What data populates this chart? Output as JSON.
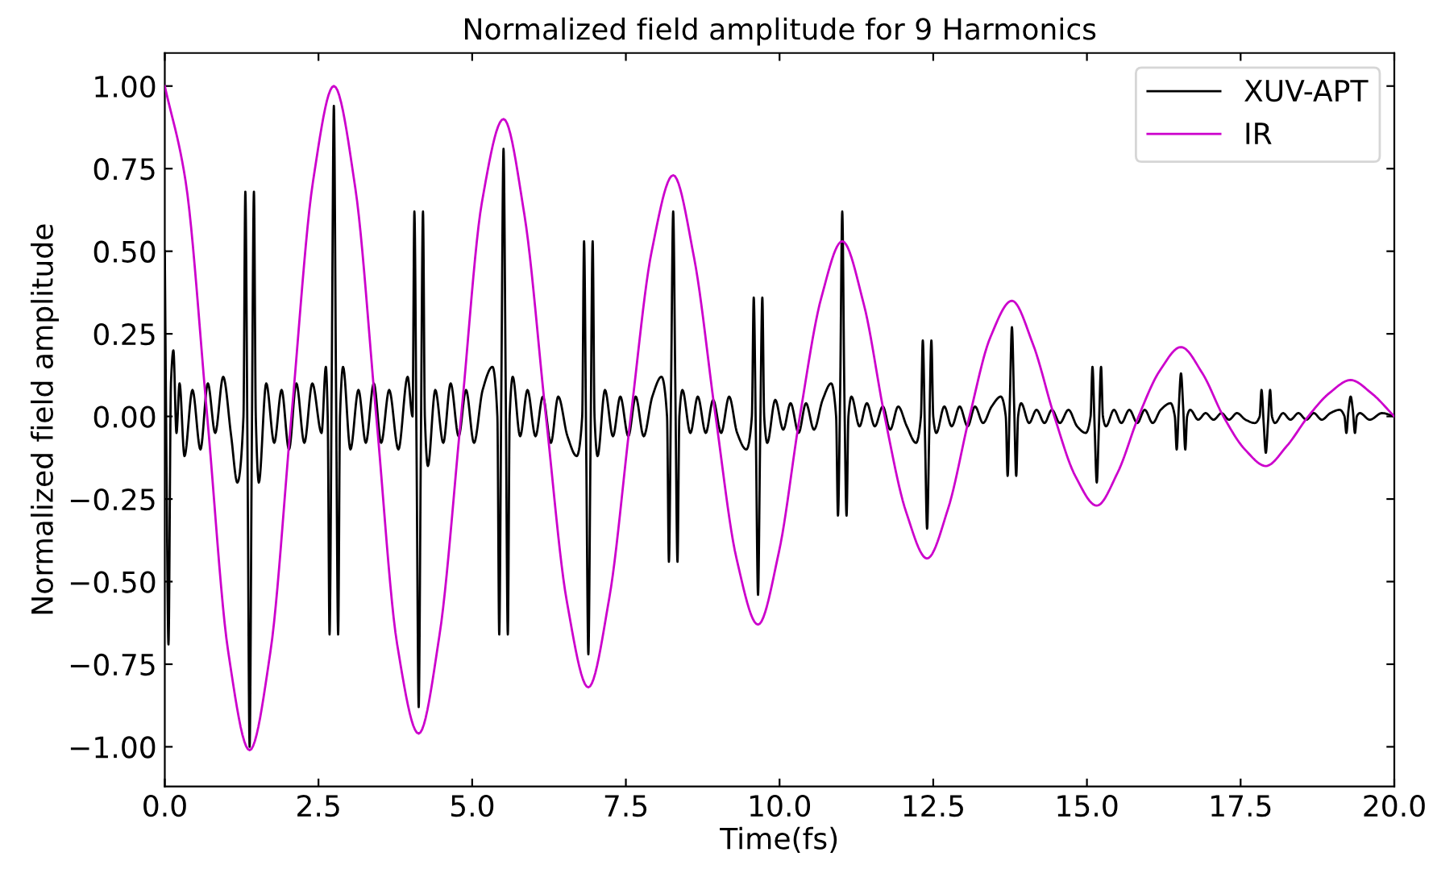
{
  "chart_data": {
    "type": "line",
    "title": "Normalized field amplitude for 9 Harmonics",
    "xlabel": "Time(fs)",
    "ylabel": "Normalized field amplitude",
    "xlim": [
      0,
      20
    ],
    "ylim": [
      -1.12,
      1.1
    ],
    "xticks": [
      {
        "value": 0,
        "label": "0.0"
      },
      {
        "value": 2.5,
        "label": "2.5"
      },
      {
        "value": 5,
        "label": "5.0"
      },
      {
        "value": 7.5,
        "label": "7.5"
      },
      {
        "value": 10,
        "label": "10.0"
      },
      {
        "value": 12.5,
        "label": "12.5"
      },
      {
        "value": 15,
        "label": "15.0"
      },
      {
        "value": 17.5,
        "label": "17.5"
      },
      {
        "value": 20,
        "label": "20.0"
      }
    ],
    "yticks": [
      {
        "value": -1,
        "label": "−1.00"
      },
      {
        "value": -0.75,
        "label": "−0.75"
      },
      {
        "value": -0.5,
        "label": "−0.50"
      },
      {
        "value": -0.25,
        "label": "−0.25"
      },
      {
        "value": 0,
        "label": "0.00"
      },
      {
        "value": 0.25,
        "label": "0.25"
      },
      {
        "value": 0.5,
        "label": "0.50"
      },
      {
        "value": 0.75,
        "label": "0.75"
      },
      {
        "value": 1,
        "label": "1.00"
      }
    ],
    "grid": false,
    "legend": "top right",
    "marker": "none",
    "line_style": "solid",
    "series": [
      {
        "name": "XUV-APT",
        "color": "#000000",
        "x": [
          0,
          0.03,
          0.06,
          0.1,
          0.14,
          0.19,
          0.24,
          0.32,
          0.45,
          0.58,
          0.7,
          0.82,
          0.95,
          1.08,
          1.18,
          1.28,
          1.31,
          1.345,
          1.38,
          1.415,
          1.45,
          1.48,
          1.53,
          1.65,
          1.78,
          1.9,
          2.02,
          2.14,
          2.27,
          2.4,
          2.55,
          2.62,
          2.65,
          2.68,
          2.715,
          2.75,
          2.785,
          2.82,
          2.85,
          2.9,
          3.02,
          3.15,
          3.27,
          3.4,
          3.52,
          3.65,
          3.8,
          3.95,
          4.03,
          4.06,
          4.095,
          4.13,
          4.165,
          4.2,
          4.23,
          4.28,
          4.4,
          4.53,
          4.65,
          4.78,
          4.9,
          5.03,
          5.17,
          5.33,
          5.41,
          5.44,
          5.475,
          5.51,
          5.545,
          5.58,
          5.61,
          5.66,
          5.78,
          5.9,
          6.03,
          6.15,
          6.28,
          6.4,
          6.55,
          6.7,
          6.79,
          6.82,
          6.855,
          6.89,
          6.925,
          6.96,
          6.99,
          7.04,
          7.16,
          7.29,
          7.41,
          7.54,
          7.66,
          7.79,
          7.93,
          8.08,
          8.17,
          8.2,
          8.235,
          8.27,
          8.305,
          8.34,
          8.37,
          8.42,
          8.55,
          8.67,
          8.8,
          8.92,
          9.05,
          9.18,
          9.31,
          9.46,
          9.55,
          9.58,
          9.615,
          9.65,
          9.685,
          9.72,
          9.75,
          9.8,
          9.93,
          10.06,
          10.18,
          10.31,
          10.43,
          10.56,
          10.7,
          10.84,
          10.92,
          10.95,
          10.985,
          11.02,
          11.055,
          11.09,
          11.12,
          11.17,
          11.3,
          11.42,
          11.55,
          11.68,
          11.8,
          11.93,
          12.07,
          12.22,
          12.3,
          12.33,
          12.365,
          12.4,
          12.435,
          12.47,
          12.5,
          12.55,
          12.68,
          12.8,
          12.93,
          13.06,
          13.18,
          13.31,
          13.45,
          13.6,
          13.68,
          13.71,
          13.745,
          13.78,
          13.815,
          13.85,
          13.88,
          13.93,
          14.06,
          14.18,
          14.31,
          14.43,
          14.56,
          14.7,
          14.84,
          14.98,
          15.06,
          15.09,
          15.125,
          15.16,
          15.195,
          15.23,
          15.26,
          15.31,
          15.44,
          15.56,
          15.69,
          15.82,
          15.94,
          16.07,
          16.2,
          16.36,
          16.43,
          16.46,
          16.495,
          16.53,
          16.565,
          16.6,
          16.63,
          16.68,
          16.81,
          16.93,
          17.06,
          17.19,
          17.31,
          17.44,
          17.58,
          17.73,
          17.81,
          17.84,
          17.875,
          17.91,
          17.945,
          17.98,
          18.01,
          18.06,
          18.19,
          18.31,
          18.44,
          18.57,
          18.69,
          18.82,
          18.96,
          19.11,
          19.19,
          19.22,
          19.255,
          19.29,
          19.325,
          19.36,
          19.39,
          19.44,
          19.6,
          19.8,
          20
        ],
        "values": [
          0.5,
          -0.2,
          -0.69,
          0.1,
          0.2,
          -0.05,
          0.1,
          -0.12,
          0.08,
          -0.1,
          0.1,
          -0.05,
          0.12,
          -0.06,
          -0.2,
          0,
          0.68,
          -0.1,
          -1.0,
          -0.1,
          0.68,
          0,
          -0.2,
          0.1,
          -0.08,
          0.08,
          -0.1,
          0.1,
          -0.08,
          0.1,
          -0.05,
          0.15,
          0,
          -0.66,
          0.1,
          0.94,
          0.1,
          -0.66,
          0,
          0.15,
          -0.1,
          0.08,
          -0.08,
          0.1,
          -0.08,
          0.08,
          -0.1,
          0.12,
          0,
          0.62,
          -0.1,
          -0.88,
          -0.1,
          0.62,
          0,
          -0.15,
          0.08,
          -0.08,
          0.1,
          -0.06,
          0.08,
          -0.08,
          0.08,
          0.15,
          0,
          -0.66,
          0.1,
          0.81,
          0.1,
          -0.66,
          0,
          0.12,
          -0.06,
          0.08,
          -0.06,
          0.06,
          -0.08,
          0.06,
          -0.06,
          -0.12,
          0,
          0.53,
          -0.1,
          -0.72,
          -0.1,
          0.53,
          0,
          -0.12,
          0.08,
          -0.06,
          0.06,
          -0.06,
          0.06,
          -0.06,
          0.06,
          0.12,
          0,
          -0.44,
          0.08,
          0.62,
          0.08,
          -0.44,
          0,
          0.08,
          -0.05,
          0.06,
          -0.05,
          0.05,
          -0.05,
          0.06,
          -0.05,
          -0.1,
          0,
          0.36,
          -0.06,
          -0.54,
          -0.06,
          0.36,
          0,
          -0.08,
          0.05,
          -0.04,
          0.04,
          -0.05,
          0.04,
          -0.04,
          0.05,
          0.1,
          0,
          -0.3,
          0.06,
          0.62,
          0.06,
          -0.3,
          0,
          0.06,
          -0.03,
          0.04,
          -0.03,
          0.03,
          -0.04,
          0.03,
          -0.03,
          -0.08,
          0,
          0.23,
          -0.05,
          -0.34,
          -0.05,
          0.23,
          0,
          -0.05,
          0.03,
          -0.03,
          0.03,
          -0.03,
          0.03,
          -0.02,
          0.03,
          0.06,
          0,
          -0.18,
          0.04,
          0.27,
          0.04,
          -0.18,
          0,
          0.04,
          -0.02,
          0.02,
          -0.02,
          0.02,
          -0.02,
          0.02,
          -0.03,
          -0.05,
          0,
          0.15,
          -0.03,
          -0.2,
          -0.03,
          0.15,
          0,
          -0.03,
          0.02,
          -0.02,
          0.02,
          -0.02,
          0.02,
          -0.02,
          0.02,
          0.04,
          0,
          -0.1,
          0.03,
          0.13,
          0.03,
          -0.1,
          0,
          0.02,
          -0.01,
          0.01,
          -0.01,
          0.01,
          -0.01,
          0.01,
          -0.01,
          -0.02,
          0,
          0.08,
          -0.02,
          -0.11,
          -0.02,
          0.08,
          0,
          -0.02,
          0.01,
          -0.01,
          0.01,
          -0.01,
          0.01,
          -0.01,
          0.01,
          0.02,
          0,
          -0.05,
          0.02,
          0.06,
          0.02,
          -0.05,
          0,
          0.01,
          -0.01,
          0.01,
          0
        ]
      },
      {
        "name": "IR",
        "color": "#cc00cc",
        "x": [
          0,
          0.34,
          0.69,
          1.03,
          1.38,
          1.72,
          2.06,
          2.41,
          2.75,
          3.1,
          3.44,
          3.78,
          4.13,
          4.47,
          4.82,
          5.16,
          5.51,
          5.85,
          6.2,
          6.54,
          6.89,
          7.23,
          7.58,
          7.92,
          8.27,
          8.61,
          8.96,
          9.3,
          9.65,
          9.99,
          10.33,
          10.68,
          11.02,
          11.37,
          11.71,
          12.06,
          12.4,
          12.74,
          13.09,
          13.43,
          13.78,
          14.12,
          14.47,
          14.81,
          15.16,
          15.5,
          15.84,
          16.19,
          16.53,
          16.88,
          17.22,
          17.57,
          17.91,
          18.25,
          18.6,
          18.94,
          19.29,
          19.63,
          20
        ],
        "values": [
          1.0,
          0.71,
          0,
          -0.71,
          -1.01,
          -0.71,
          0,
          0.71,
          1.0,
          0.69,
          0,
          -0.69,
          -0.96,
          -0.66,
          0,
          0.65,
          0.9,
          0.61,
          0,
          -0.56,
          -0.82,
          -0.55,
          0,
          0.5,
          0.73,
          0.48,
          0,
          -0.43,
          -0.63,
          -0.41,
          0,
          0.36,
          0.53,
          0.34,
          0,
          -0.29,
          -0.43,
          -0.28,
          0,
          0.24,
          0.35,
          0.22,
          0,
          -0.18,
          -0.27,
          -0.17,
          0,
          0.14,
          0.21,
          0.13,
          0,
          -0.1,
          -0.15,
          -0.09,
          0,
          0.07,
          0.11,
          0.07,
          0
        ]
      }
    ]
  }
}
